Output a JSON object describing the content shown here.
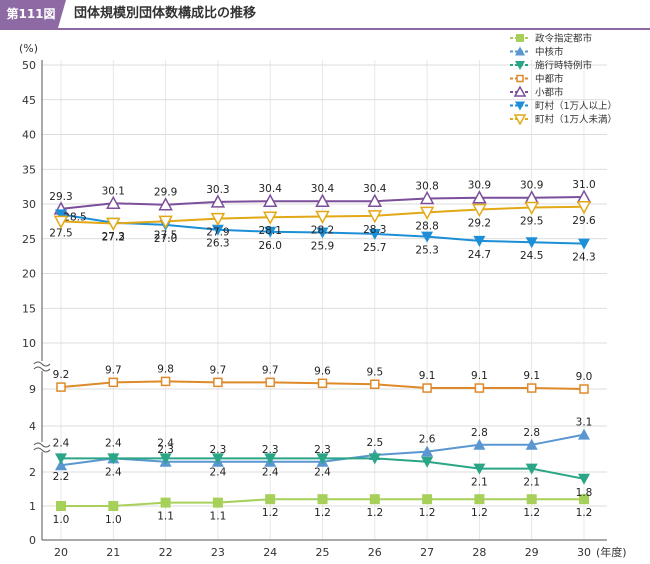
{
  "header": {
    "badge": "第111図",
    "title": "団体規模別団体数構成比の推移",
    "accent_color": "#8e6aa5"
  },
  "chart_data": {
    "type": "line",
    "y_unit": "(%)",
    "x_unit": "(年度)",
    "x": [
      "20",
      "21",
      "22",
      "23",
      "24",
      "25",
      "26",
      "27",
      "28",
      "29",
      "30"
    ],
    "yticks_upper": [
      "50",
      "45",
      "40",
      "35",
      "30",
      "25",
      "20",
      "15",
      "10"
    ],
    "yticks_lower": [
      "9",
      "4",
      "2",
      "1",
      "0"
    ],
    "axis_breaks": 2,
    "grid": true,
    "legend_position": "top-right",
    "series": [
      {
        "name": "政令指定都市",
        "marker": "square-filled",
        "color": "#a7d05a",
        "values": [
          1.0,
          1.0,
          1.1,
          1.1,
          1.2,
          1.2,
          1.2,
          1.2,
          1.2,
          1.2,
          1.2
        ],
        "labels": [
          "1.0",
          "1.0",
          "1.1",
          "1.1",
          "1.2",
          "1.2",
          "1.2",
          "1.2",
          "1.2",
          "1.2",
          "1.2"
        ]
      },
      {
        "name": "中核市",
        "marker": "triangle-up-filled",
        "color": "#5a96d0",
        "values": [
          2.2,
          2.4,
          2.3,
          2.3,
          2.3,
          2.3,
          2.5,
          2.6,
          2.8,
          2.8,
          3.1
        ],
        "labels": [
          "2.2",
          "2.4",
          "2.3",
          "2.3",
          "2.3",
          "2.3",
          "2.5",
          "2.6",
          "2.8",
          "2.8",
          "3.1"
        ]
      },
      {
        "name": "施行時特例市",
        "marker": "triangle-down-filled",
        "color": "#2aa585",
        "values": [
          2.4,
          2.4,
          2.4,
          2.4,
          2.4,
          2.4,
          2.4,
          2.3,
          2.1,
          2.1,
          1.8
        ],
        "labels": [
          "2.4",
          "2.4",
          "2.4",
          "2.4",
          "2.4",
          "2.4",
          "",
          "",
          "2.1",
          "2.1",
          "1.8"
        ]
      },
      {
        "name": "中都市",
        "marker": "square-open",
        "color": "#df8a2a",
        "values": [
          9.2,
          9.7,
          9.8,
          9.7,
          9.7,
          9.6,
          9.5,
          9.1,
          9.1,
          9.1,
          9.0
        ],
        "labels": [
          "9.2",
          "9.7",
          "9.8",
          "9.7",
          "9.7",
          "9.6",
          "9.5",
          "9.1",
          "9.1",
          "9.1",
          "9.0"
        ]
      },
      {
        "name": "小都市",
        "marker": "triangle-up-open",
        "color": "#7b4f9a",
        "values": [
          29.3,
          30.1,
          29.9,
          30.3,
          30.4,
          30.4,
          30.4,
          30.8,
          30.9,
          30.9,
          31.0
        ],
        "labels": [
          "29.3",
          "30.1",
          "29.9",
          "30.3",
          "30.4",
          "30.4",
          "30.4",
          "30.8",
          "30.9",
          "30.9",
          "31.0"
        ]
      },
      {
        "name": "町村（1万人以上）",
        "marker": "triangle-down-filled",
        "color": "#1c8fd6",
        "values": [
          28.5,
          27.3,
          27.0,
          26.3,
          26.0,
          25.9,
          25.7,
          25.3,
          24.7,
          24.5,
          24.3
        ],
        "labels": [
          "28.5",
          "27.3",
          "27.0",
          "26.3",
          "26.0",
          "25.9",
          "25.7",
          "25.3",
          "24.7",
          "24.5",
          "24.3"
        ]
      },
      {
        "name": "町村（1万人未満）",
        "marker": "triangle-down-open",
        "color": "#e2a816",
        "values": [
          27.5,
          27.2,
          27.5,
          27.9,
          28.1,
          28.2,
          28.3,
          28.8,
          29.2,
          29.5,
          29.6
        ],
        "labels": [
          "27.5",
          "27.2",
          "27.5",
          "27.9",
          "28.1",
          "28.2",
          "28.3",
          "28.8",
          "29.2",
          "29.5",
          "29.6"
        ]
      }
    ]
  }
}
